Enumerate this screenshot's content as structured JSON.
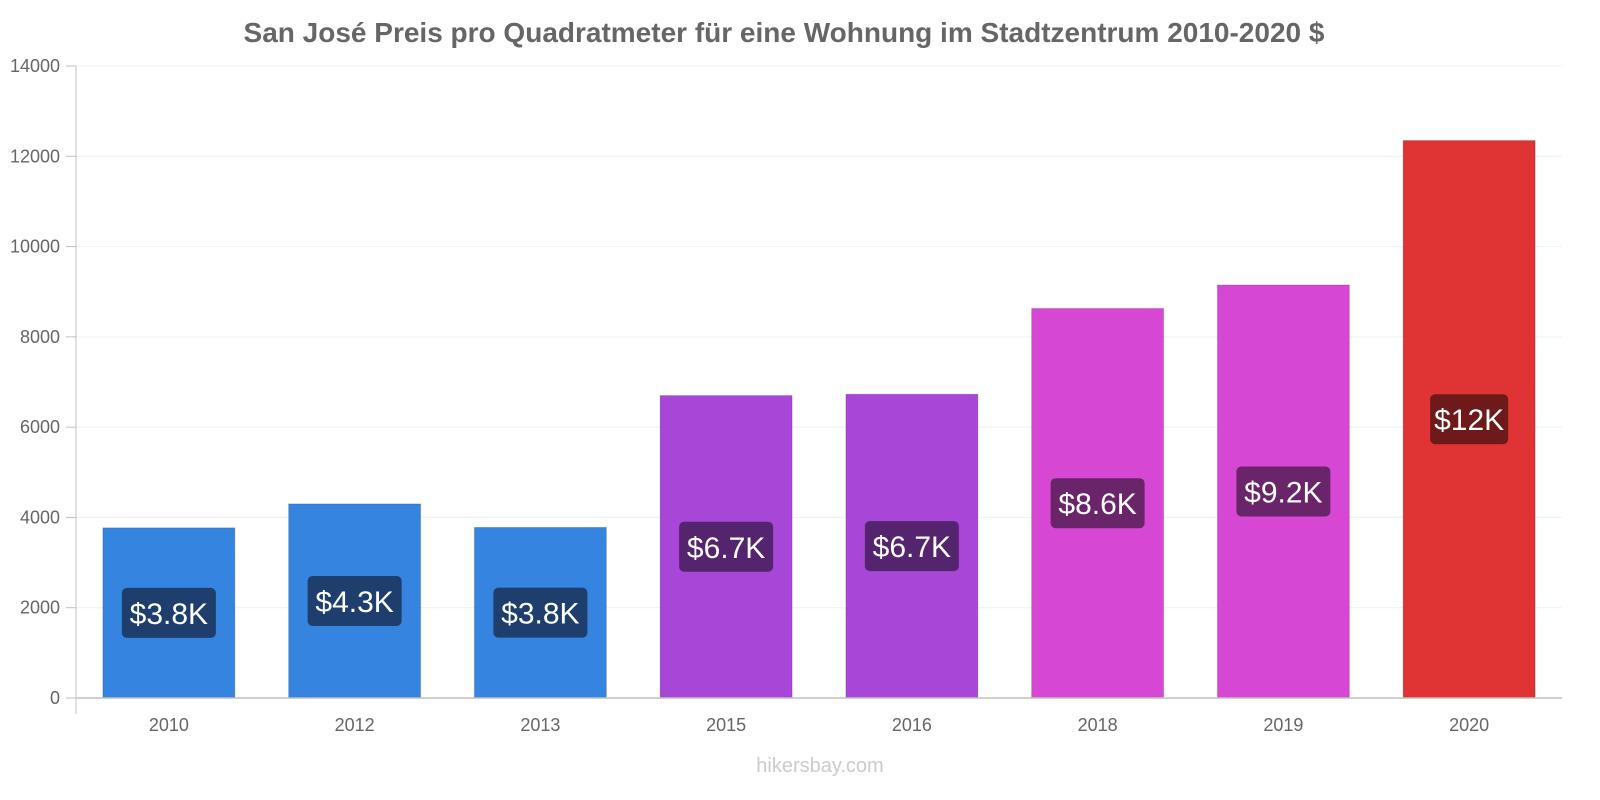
{
  "chart_data": {
    "type": "bar",
    "title": "San José Preis pro Quadratmeter für eine Wohnung im Stadtzentrum 2010-2020 $",
    "categories": [
      "2010",
      "2012",
      "2013",
      "2015",
      "2016",
      "2018",
      "2019",
      "2020"
    ],
    "values": [
      3770,
      4300,
      3780,
      6700,
      6730,
      8630,
      9150,
      12350
    ],
    "value_labels": [
      "$3.8K",
      "$4.3K",
      "$3.8K",
      "$6.7K",
      "$6.7K",
      "$8.6K",
      "$9.2K",
      "$12K"
    ],
    "bar_colors": [
      "#3584e0",
      "#3584e0",
      "#3584e0",
      "#a846d8",
      "#a846d8",
      "#d648d4",
      "#d648d4",
      "#e03434"
    ],
    "label_bg_colors": [
      "#1e3f6e",
      "#1e3f6e",
      "#1e3f6e",
      "#55246e",
      "#55246e",
      "#6a246a",
      "#6a246a",
      "#6e1a1a"
    ],
    "yticks": [
      "0",
      "2000",
      "4000",
      "6000",
      "8000",
      "10000",
      "12000",
      "14000"
    ],
    "ylim": [
      0,
      14000
    ],
    "xlabel": "",
    "ylabel": "",
    "grid": true,
    "legend": "none"
  },
  "footer": "hikersbay.com"
}
